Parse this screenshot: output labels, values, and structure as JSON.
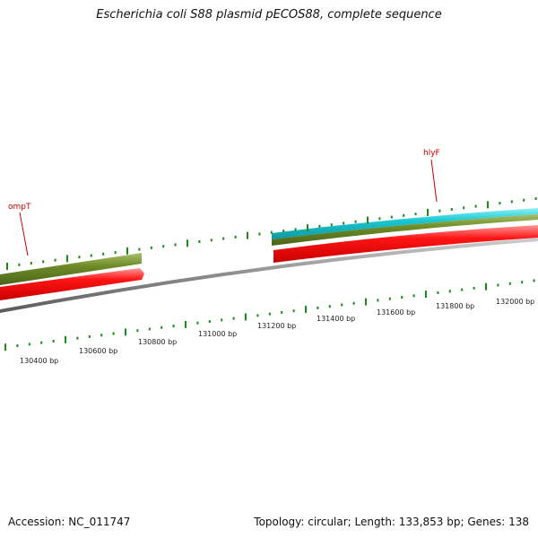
{
  "title": "Escherichia coli S88 plasmid pECOS88, complete sequence",
  "footer": {
    "accession": "Accession: NC_011747",
    "summary": "Topology: circular; Length: 133,853 bp; Genes: 138"
  },
  "genes": [
    {
      "name": "ompT",
      "color": "#c00000"
    },
    {
      "name": "hlyF",
      "color": "#c00000"
    }
  ],
  "position_labels": [
    "130400 bp",
    "130600 bp",
    "130800 bp",
    "131000 bp",
    "131200 bp",
    "131400 bp",
    "131600 bp",
    "131800 bp",
    "132000 bp"
  ],
  "colors": {
    "backbone": "#8c8c8c",
    "cds_forward": "#ff1414",
    "feature_olive": "#6e8c28",
    "feature_cyan": "#19c8d2",
    "tick_green": "#1a8a1a"
  }
}
